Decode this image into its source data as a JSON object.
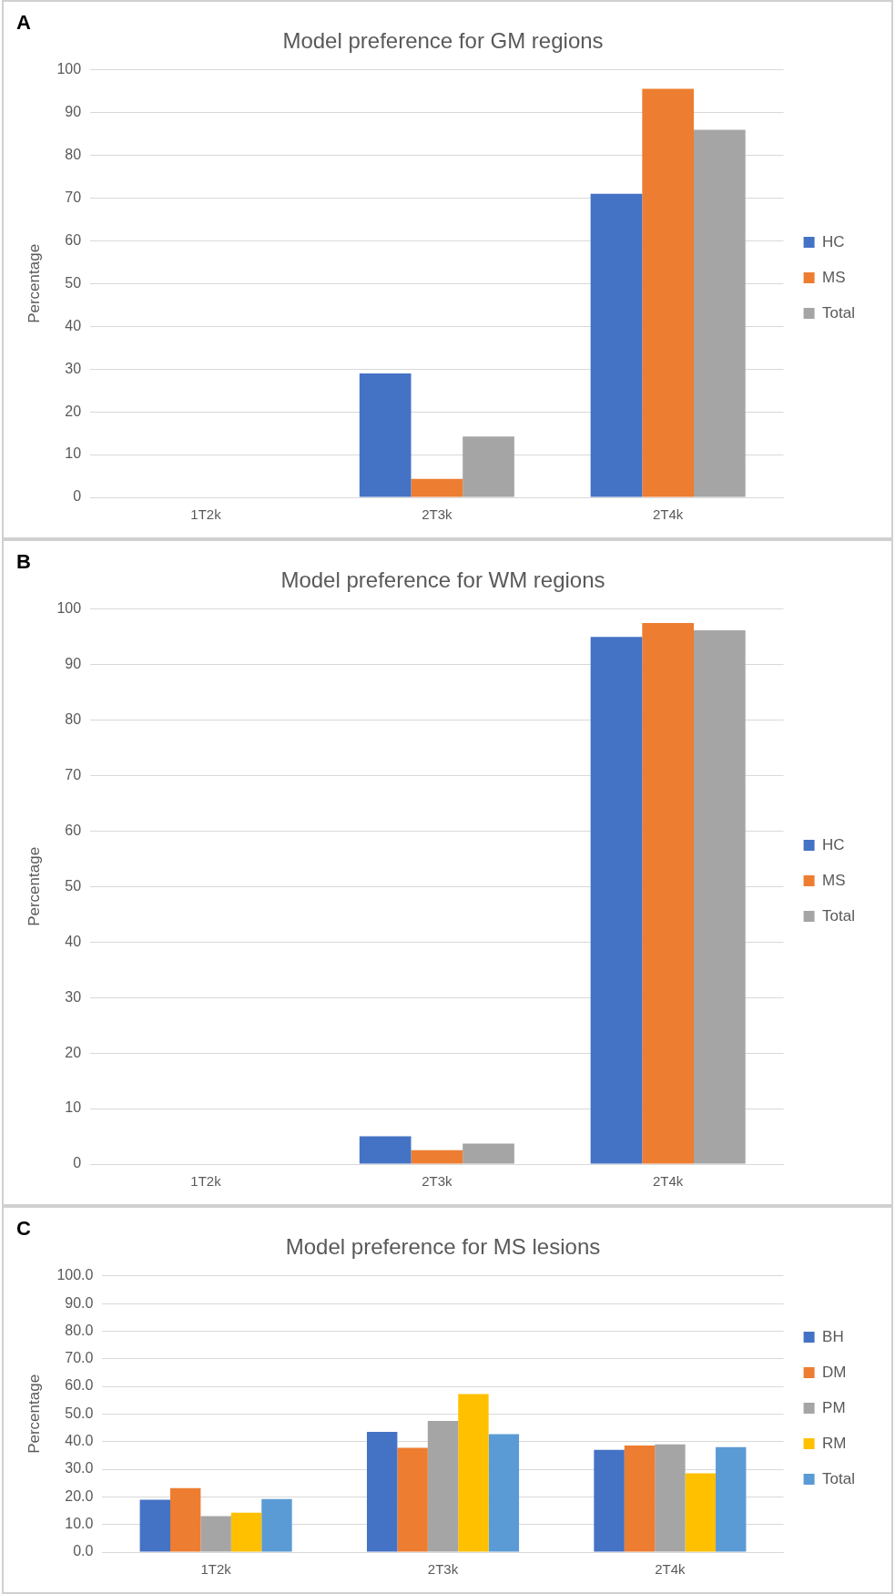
{
  "chart_data": [
    {
      "type": "bar",
      "title": "Model preference for GM regions",
      "ylabel": "Percentage",
      "annotations": [
        "A"
      ],
      "categories": [
        "1T2k",
        "2T3k",
        "2T4k"
      ],
      "series": [
        {
          "name": "HC",
          "color": "#4472c4",
          "values": [
            0,
            29,
            71
          ]
        },
        {
          "name": "MS",
          "color": "#ed7d31",
          "values": [
            0,
            4.3,
            95.6
          ]
        },
        {
          "name": "Total",
          "color": "#a5a5a5",
          "values": [
            0,
            14.2,
            86
          ]
        }
      ],
      "ylim": [
        0,
        100
      ],
      "yticks": [
        0,
        10,
        20,
        30,
        40,
        50,
        60,
        70,
        80,
        90,
        100
      ],
      "grid": "y",
      "legend": "right"
    },
    {
      "type": "bar",
      "title": "Model preference for WM regions",
      "ylabel": "Percentage",
      "annotations": [
        "B"
      ],
      "categories": [
        "1T2k",
        "2T3k",
        "2T4k"
      ],
      "series": [
        {
          "name": "HC",
          "color": "#4472c4",
          "values": [
            0,
            5,
            95
          ]
        },
        {
          "name": "MS",
          "color": "#ed7d31",
          "values": [
            0,
            2.5,
            97.5
          ]
        },
        {
          "name": "Total",
          "color": "#a5a5a5",
          "values": [
            0,
            3.7,
            96.2
          ]
        }
      ],
      "ylim": [
        0,
        100
      ],
      "yticks": [
        0,
        10,
        20,
        30,
        40,
        50,
        60,
        70,
        80,
        90,
        100
      ],
      "grid": "y",
      "legend": "right"
    },
    {
      "type": "bar",
      "title": "Model preference for MS lesions",
      "ylabel": "Percentage",
      "annotations": [
        "C"
      ],
      "categories": [
        "1T2k",
        "2T3k",
        "2T4k"
      ],
      "series": [
        {
          "name": "BH",
          "color": "#4472c4",
          "values": [
            19,
            43.5,
            37
          ]
        },
        {
          "name": "DM",
          "color": "#ed7d31",
          "values": [
            23.2,
            37.8,
            38.6
          ]
        },
        {
          "name": "PM",
          "color": "#a5a5a5",
          "values": [
            13,
            47.5,
            39
          ]
        },
        {
          "name": "RM",
          "color": "#ffc000",
          "values": [
            14.3,
            57.2,
            28.5
          ]
        },
        {
          "name": "Total",
          "color": "#5b9bd5",
          "values": [
            19.2,
            42.7,
            38
          ]
        }
      ],
      "ylim": [
        0,
        100
      ],
      "yticks": [
        {
          "value": 0,
          "label": "0.0"
        },
        {
          "value": 10,
          "label": "10.0"
        },
        {
          "value": 20,
          "label": "20.0"
        },
        {
          "value": 30,
          "label": "30.0"
        },
        {
          "value": 40,
          "label": "40.0"
        },
        {
          "value": 50,
          "label": "50.0"
        },
        {
          "value": 60,
          "label": "60.0"
        },
        {
          "value": 70,
          "label": "70.0"
        },
        {
          "value": 80,
          "label": "80.0"
        },
        {
          "value": 90,
          "label": "90.0"
        },
        {
          "value": 100,
          "label": "100.0"
        }
      ],
      "grid": "y",
      "legend": "right"
    }
  ]
}
